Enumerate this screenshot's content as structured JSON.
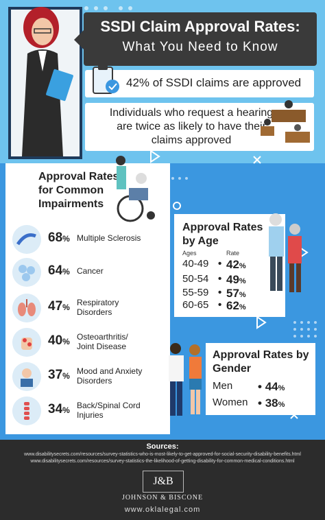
{
  "header": {
    "title_line1": "SSDI Claim Approval Rates:",
    "title_line2": "What You Need to Know"
  },
  "facts": [
    {
      "text": "42% of SSDI claims are approved"
    },
    {
      "text": "Individuals who request a hearing are twice as likely to have their claims approved"
    }
  ],
  "impairments": {
    "title": "Approval Rates for Common Impairments",
    "items": [
      {
        "value": "68",
        "unit": "%",
        "label": "Multiple Sclerosis",
        "icon": "nerve-icon"
      },
      {
        "value": "64",
        "unit": "%",
        "label": "Cancer",
        "icon": "cells-icon"
      },
      {
        "value": "47",
        "unit": "%",
        "label": "Respiratory Disorders",
        "icon": "lungs-icon"
      },
      {
        "value": "40",
        "unit": "%",
        "label": "Osteoarthritis/ Joint Disease",
        "icon": "joint-hand-icon"
      },
      {
        "value": "37",
        "unit": "%",
        "label": "Mood and Anxiety Disorders",
        "icon": "stressed-person-icon"
      },
      {
        "value": "34",
        "unit": "%",
        "label": "Back/Spinal Cord Injuries",
        "icon": "spine-icon"
      }
    ]
  },
  "age": {
    "title": "Approval Rates by Age",
    "col_ages": "Ages",
    "col_rate": "Rate",
    "rows": [
      {
        "ages": "40-49",
        "rate": "42",
        "unit": "%"
      },
      {
        "ages": "50-54",
        "rate": "49",
        "unit": "%"
      },
      {
        "ages": "55-59",
        "rate": "57",
        "unit": "%"
      },
      {
        "ages": "60-65",
        "rate": "62",
        "unit": "%"
      }
    ]
  },
  "gender": {
    "title": "Approval Rates by Gender",
    "rows": [
      {
        "label": "Men",
        "rate": "44",
        "unit": "%"
      },
      {
        "label": "Women",
        "rate": "38",
        "unit": "%"
      }
    ]
  },
  "footer": {
    "sources_title": "Sources:",
    "sources": [
      "www.disabilitysecrets.com/resources/survey-statistics-who-is-most-likely-to-get-approved-for-social-security-disability-benefits.html",
      "www.disabilitysecrets.com/resources/survey-statistics-the-likelihood-of-getting-disability-for-common-medical-conditions.html"
    ],
    "logo_text": "J&B",
    "firm": "JOHNSON & BISCONE",
    "website": "www.oklalegal.com"
  },
  "colors": {
    "sky": "#6ec3ee",
    "blue": "#3b97e0",
    "dark": "#2c2c2c",
    "title_box": "#3a3a3a"
  }
}
